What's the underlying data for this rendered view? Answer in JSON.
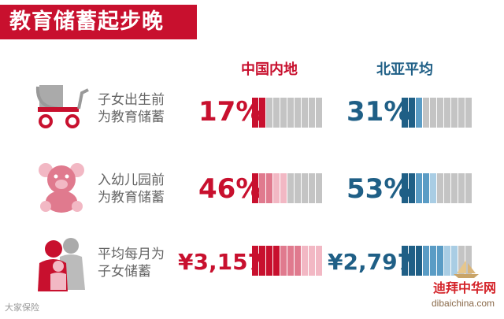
{
  "title": "教育储蓄起步晚",
  "columns": {
    "china": "中国内地",
    "north_asia": "北亚平均"
  },
  "colors": {
    "red": "#c8102e",
    "red_mid": "#e07a8e",
    "red_light": "#f2b8c4",
    "blue": "#1f5f86",
    "blue_mid": "#5a9cc5",
    "blue_light": "#a9cde4",
    "gray": "#c4c4c4"
  },
  "rows": [
    {
      "label1": "子女出生前",
      "label2": "为教育储蓄",
      "icon": "baby-stroller-icon",
      "china_value": "17%",
      "north_asia_value": "31%"
    },
    {
      "label1": "入幼儿园前",
      "label2": "为教育储蓄",
      "icon": "teddy-bear-icon",
      "china_value": "46%",
      "north_asia_value": "53%"
    },
    {
      "label1": "平均每月为",
      "label2": "子女储蓄",
      "icon": "family-icon",
      "china_value": "¥3,157",
      "north_asia_value": "¥2,797"
    }
  ],
  "chart_data": {
    "type": "bar",
    "title": "教育储蓄起步晚",
    "categories": [
      "子女出生前为教育储蓄",
      "入幼儿园前为教育储蓄",
      "平均每月为子女储蓄"
    ],
    "series": [
      {
        "name": "中国内地",
        "values": [
          17,
          46,
          3157
        ],
        "display": [
          "17%",
          "46%",
          "¥3,157"
        ]
      },
      {
        "name": "北亚平均",
        "values": [
          31,
          53,
          2797
        ],
        "display": [
          "31%",
          "53%",
          "¥2,797"
        ]
      }
    ]
  },
  "watermarks": {
    "left": "大家保险",
    "right_cn": "迪拜中华网",
    "right_url": "dibaichina.com"
  }
}
